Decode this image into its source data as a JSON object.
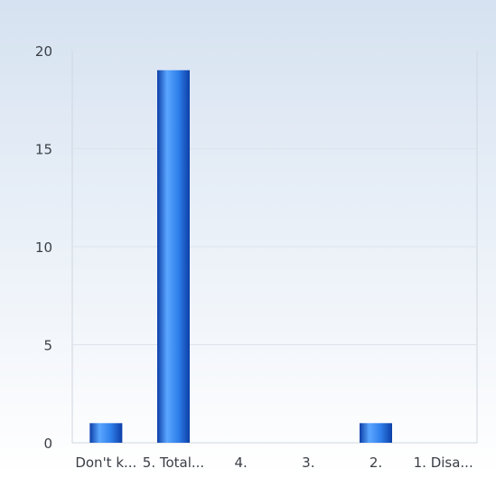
{
  "chart_data": {
    "type": "bar",
    "categories": [
      "Don't k...",
      "5. Total...",
      "4.",
      "3.",
      "2.",
      "1. Disa..."
    ],
    "values": [
      1,
      19,
      0,
      0,
      1,
      0
    ],
    "ylim": [
      0,
      20
    ],
    "yticks": [
      0,
      5,
      10,
      15,
      20
    ],
    "grid": true,
    "colors": {
      "bar_dark": "#0d3fa8",
      "bar_mid": "#2f7fea",
      "bar_light": "#5aa6ff",
      "grid": "#dde3ea",
      "plot_border": "#cfd6df",
      "tick_text": "#3a3f46",
      "background_top": "#d6e2f1",
      "background_bottom": "#ffffff"
    }
  }
}
